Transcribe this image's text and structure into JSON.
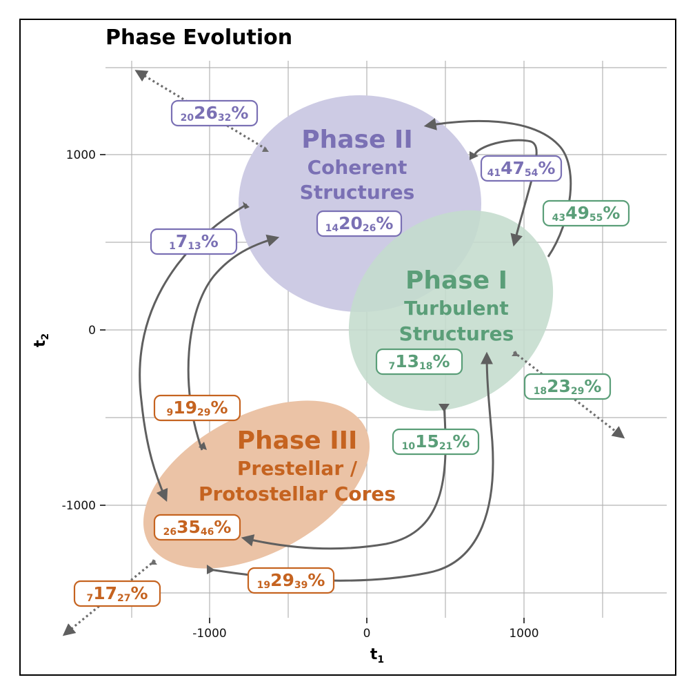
{
  "title": "Phase Evolution",
  "axes": {
    "xlabel": "t",
    "xlabel_sub": "1",
    "ylabel": "t",
    "ylabel_sub": "2",
    "x_ticks": [
      "-1000",
      "0",
      "1000"
    ],
    "y_ticks": [
      "1000",
      "0",
      "-1000"
    ]
  },
  "colors": {
    "phase1": "#5a9e78",
    "phase2": "#7a70b4",
    "phase3": "#c56320",
    "phase1_fill": "#c4dccd",
    "phase2_fill": "#cdcbe4",
    "phase3_fill": "#ebc3a6"
  },
  "phases": {
    "phase2": {
      "title": "Phase II",
      "line1": "Coherent",
      "line2": "Structures"
    },
    "phase1": {
      "title": "Phase I",
      "line1": "Turbulent",
      "line2": "Structures"
    },
    "phase3": {
      "title": "Phase III",
      "line1": "Prestellar /",
      "line2": "Protostellar Cores"
    }
  },
  "labels": [
    {
      "lo": "20",
      "mid": "26",
      "hi": "32",
      "phase": "phase2"
    },
    {
      "lo": "41",
      "mid": "47",
      "hi": "54",
      "phase": "phase2"
    },
    {
      "lo": "14",
      "mid": "20",
      "hi": "26",
      "phase": "phase2"
    },
    {
      "lo": "1",
      "mid": "7",
      "hi": "13",
      "phase": "phase2"
    },
    {
      "lo": "43",
      "mid": "49",
      "hi": "55",
      "phase": "phase1"
    },
    {
      "lo": "7",
      "mid": "13",
      "hi": "18",
      "phase": "phase1"
    },
    {
      "lo": "18",
      "mid": "23",
      "hi": "29",
      "phase": "phase1"
    },
    {
      "lo": "10",
      "mid": "15",
      "hi": "21",
      "phase": "phase1"
    },
    {
      "lo": "9",
      "mid": "19",
      "hi": "29",
      "phase": "phase3"
    },
    {
      "lo": "26",
      "mid": "35",
      "hi": "46",
      "phase": "phase3"
    },
    {
      "lo": "7",
      "mid": "17",
      "hi": "27",
      "phase": "phase3"
    },
    {
      "lo": "19",
      "mid": "29",
      "hi": "39",
      "phase": "phase3"
    }
  ]
}
